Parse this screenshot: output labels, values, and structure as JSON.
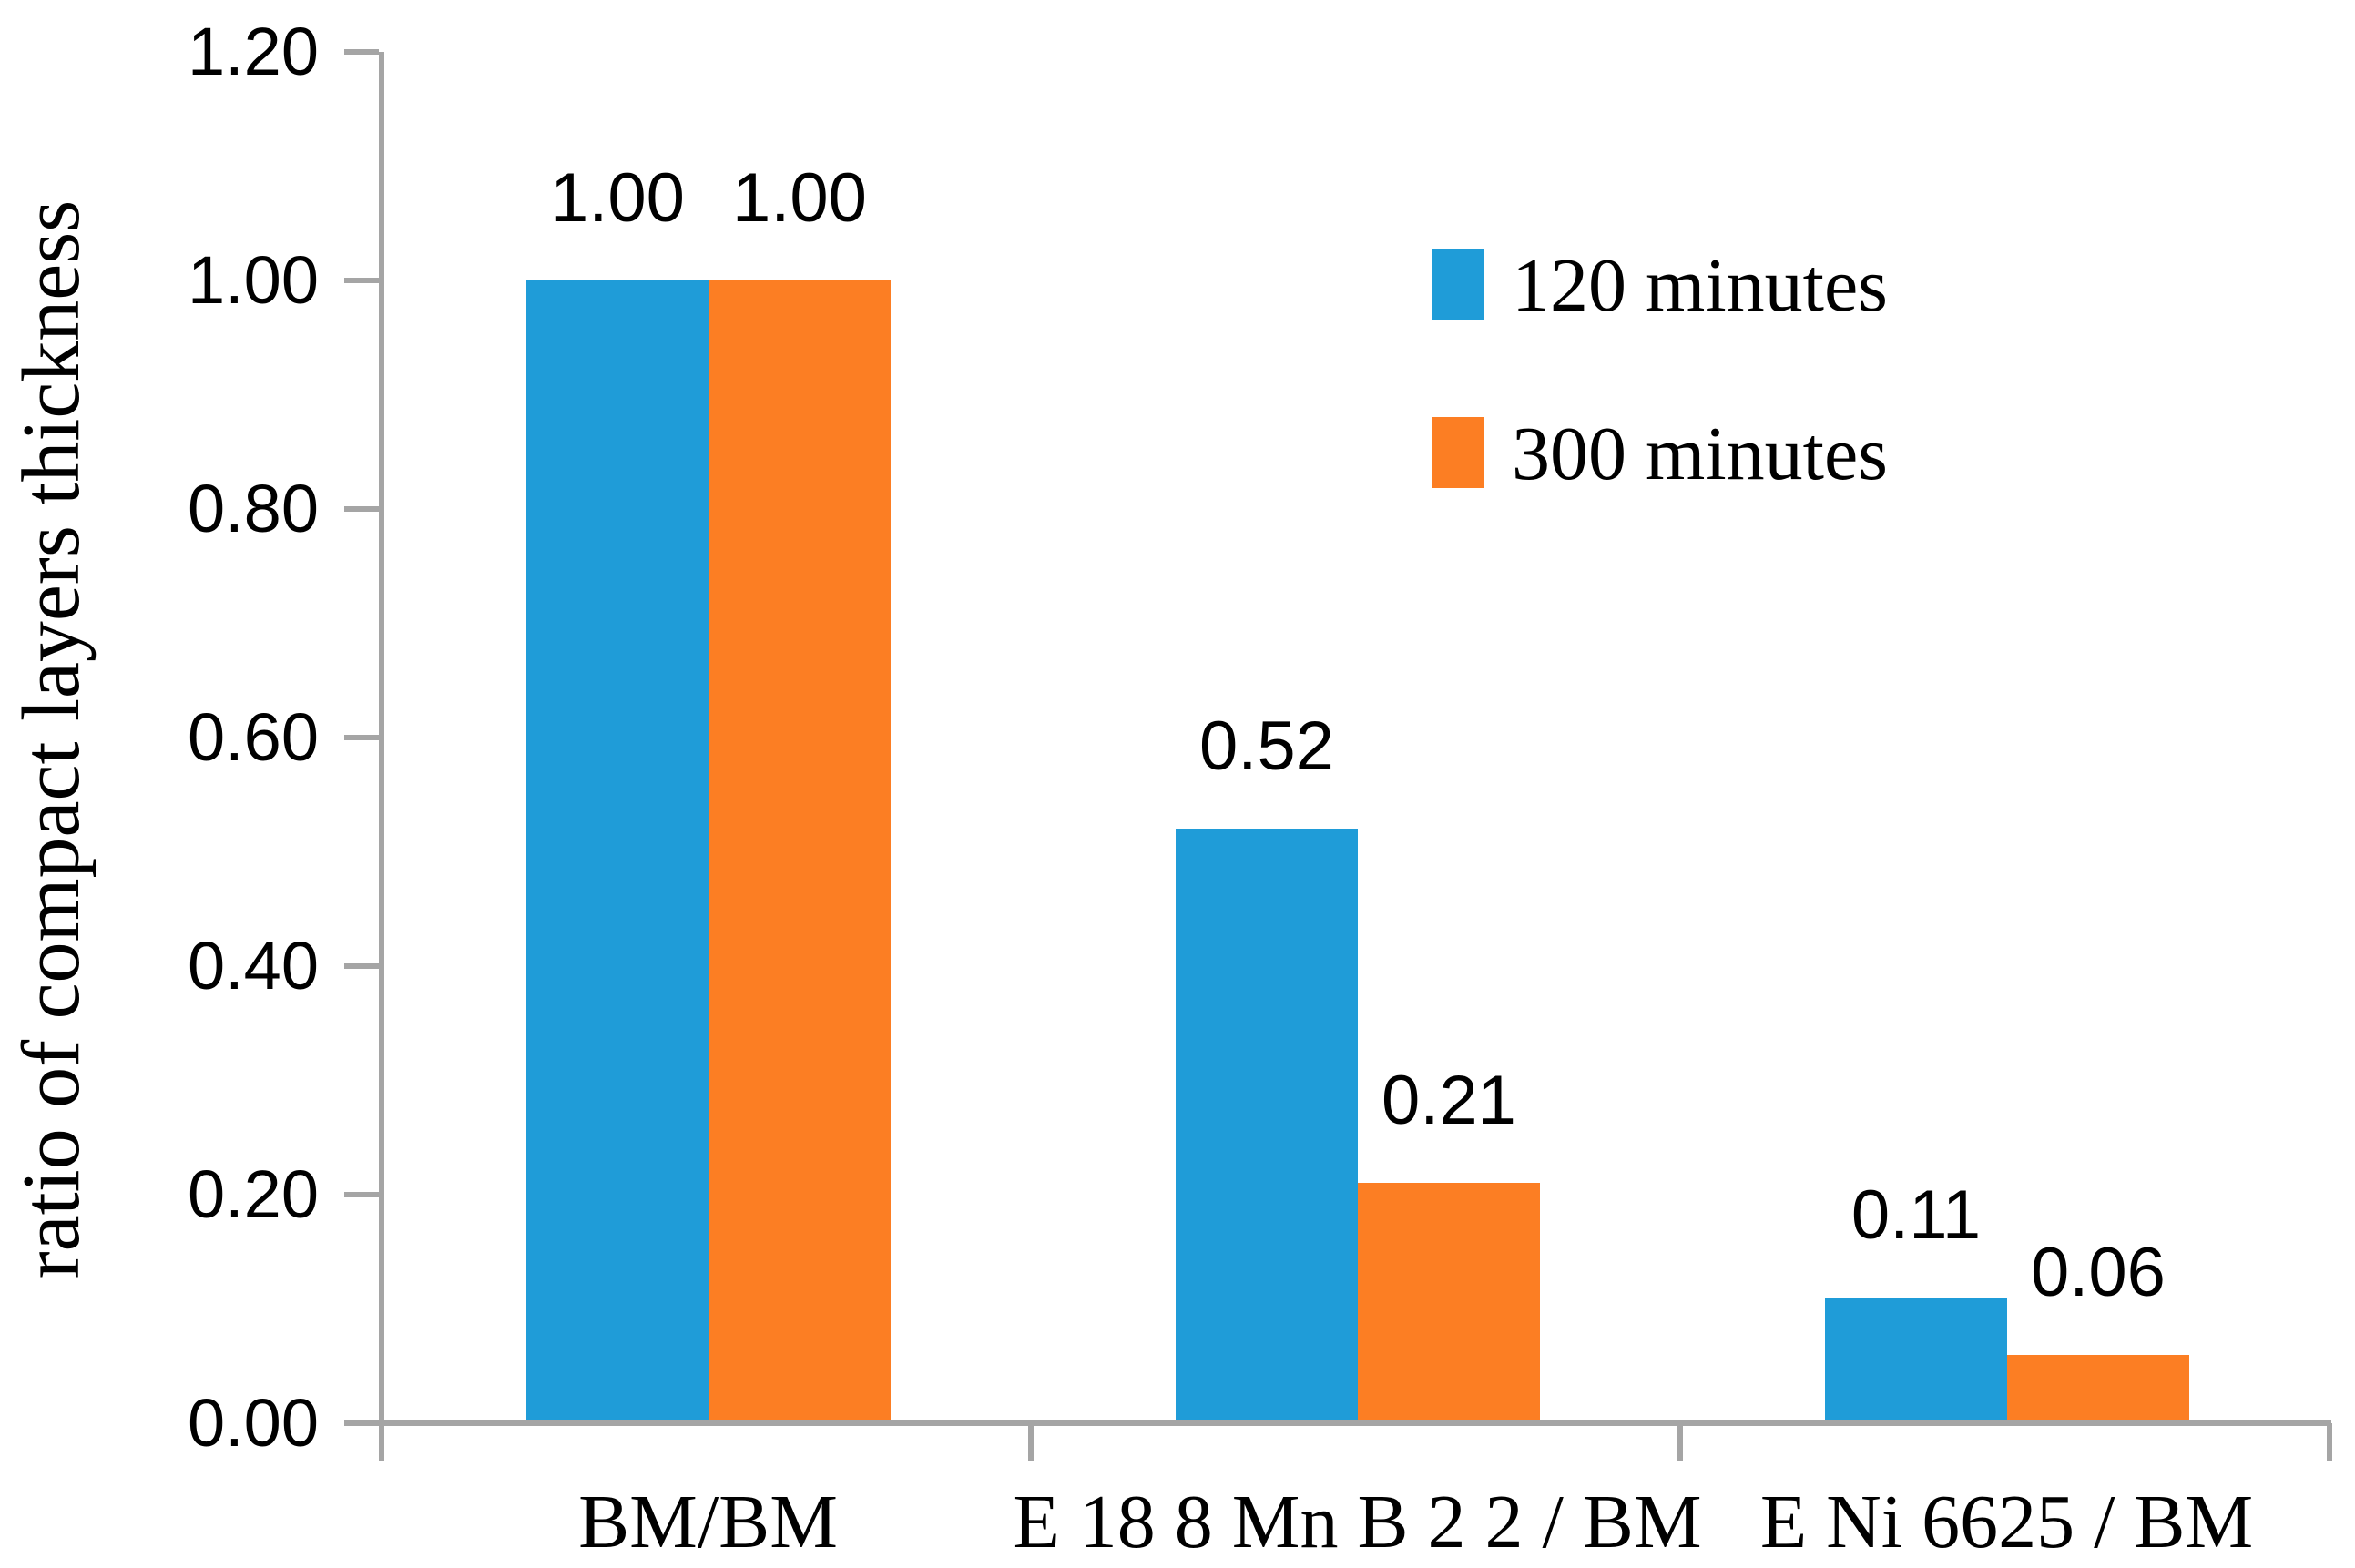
{
  "chart_data": {
    "type": "bar",
    "title": "",
    "xlabel": "",
    "ylabel": "ratio of compact layers thickness",
    "categories": [
      "BM/BM",
      "E 18 8 Mn B 2 2 / BM",
      "E Ni 6625 / BM"
    ],
    "series": [
      {
        "name": "120 minutes",
        "color": "#1F9CD8",
        "values": [
          1.0,
          0.52,
          0.11
        ],
        "value_labels": [
          "1.00",
          "0.52",
          "0.11"
        ]
      },
      {
        "name": "300 minutes",
        "color": "#FC7E23",
        "values": [
          1.0,
          0.21,
          0.06
        ],
        "value_labels": [
          "1.00",
          "0.21",
          "0.06"
        ]
      }
    ],
    "ylim": [
      0,
      1.2
    ],
    "yticks": [
      {
        "value": 0.0,
        "label": "0.00"
      },
      {
        "value": 0.2,
        "label": "0.20"
      },
      {
        "value": 0.4,
        "label": "0.40"
      },
      {
        "value": 0.6,
        "label": "0.60"
      },
      {
        "value": 0.8,
        "label": "0.80"
      },
      {
        "value": 1.0,
        "label": "1.00"
      },
      {
        "value": 1.2,
        "label": "1.20"
      }
    ],
    "grid": false,
    "legend_position": "upper-right",
    "axis_color": "#A5A5A5",
    "text_color": "#000000"
  }
}
